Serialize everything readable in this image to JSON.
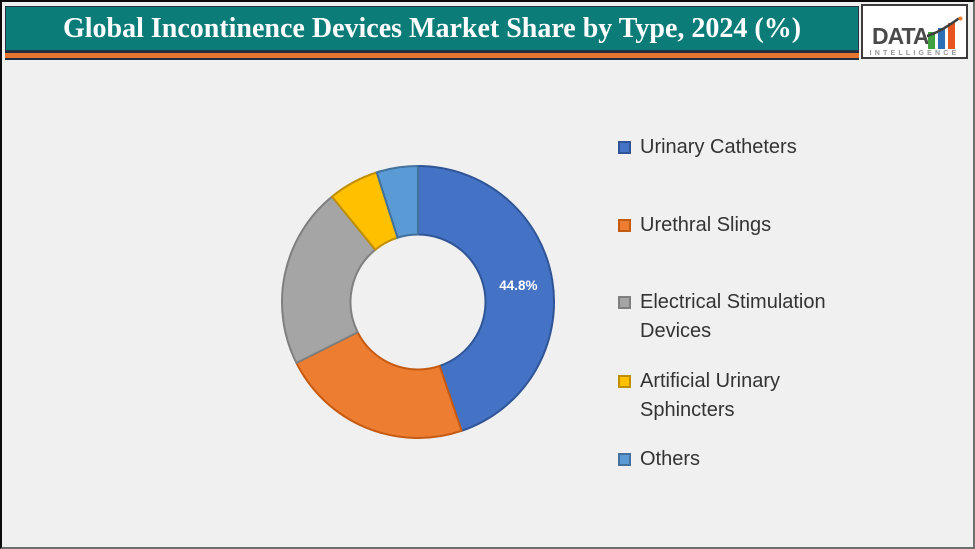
{
  "header": {
    "title": "Global Incontinence Devices Market Share by Type, 2024 (%)",
    "band_color": "#0B7C78",
    "stripe_color": "#E87431",
    "title_color": "#FFFFFF"
  },
  "logo": {
    "text": "DATA",
    "subtext": "INTELLIGENCE",
    "text_color": "#4A4A4A",
    "bar_colors": [
      "#3FA13F",
      "#2E6FB5",
      "#E8561F"
    ],
    "arrow_color": "#3F3F3F",
    "arrow_tip_color": "#F07F29"
  },
  "chart_data": {
    "type": "pie",
    "subtype": "donut",
    "title": "Global Incontinence Devices Market Share by Type, 2024 (%)",
    "categories": [
      "Urinary Catheters",
      "Urethral Slings",
      "Electrical Stimulation Devices",
      "Artificial Urinary Sphincters",
      "Others"
    ],
    "values": [
      44.8,
      22.8,
      21.5,
      6.0,
      4.9
    ],
    "colors": [
      "#4472C4",
      "#ED7D31",
      "#A5A5A5",
      "#FFC000",
      "#5B9BD5"
    ],
    "border_colors": [
      "#2F5597",
      "#C55A11",
      "#7F7F7F",
      "#BF8F00",
      "#41719C"
    ],
    "data_labels_shown": [
      "44.8%",
      null,
      null,
      null,
      null
    ],
    "data_label_color": "#FFFFFF",
    "direction": "clockwise",
    "start_angle_deg": 0,
    "hole_ratio": 0.5,
    "legend_position": "right",
    "background": "#F0F0F0"
  },
  "legend": {
    "items": [
      {
        "label": "Urinary Catheters",
        "color": "#4472C4",
        "border": "#2F5597"
      },
      {
        "label": "Urethral Slings",
        "color": "#ED7D31",
        "border": "#C55A11"
      },
      {
        "label": "Electrical Stimulation Devices",
        "color": "#A5A5A5",
        "border": "#7F7F7F"
      },
      {
        "label": "Artificial Urinary Sphincters",
        "color": "#FFC000",
        "border": "#BF8F00"
      },
      {
        "label": "Others",
        "color": "#5B9BD5",
        "border": "#41719C"
      }
    ]
  }
}
